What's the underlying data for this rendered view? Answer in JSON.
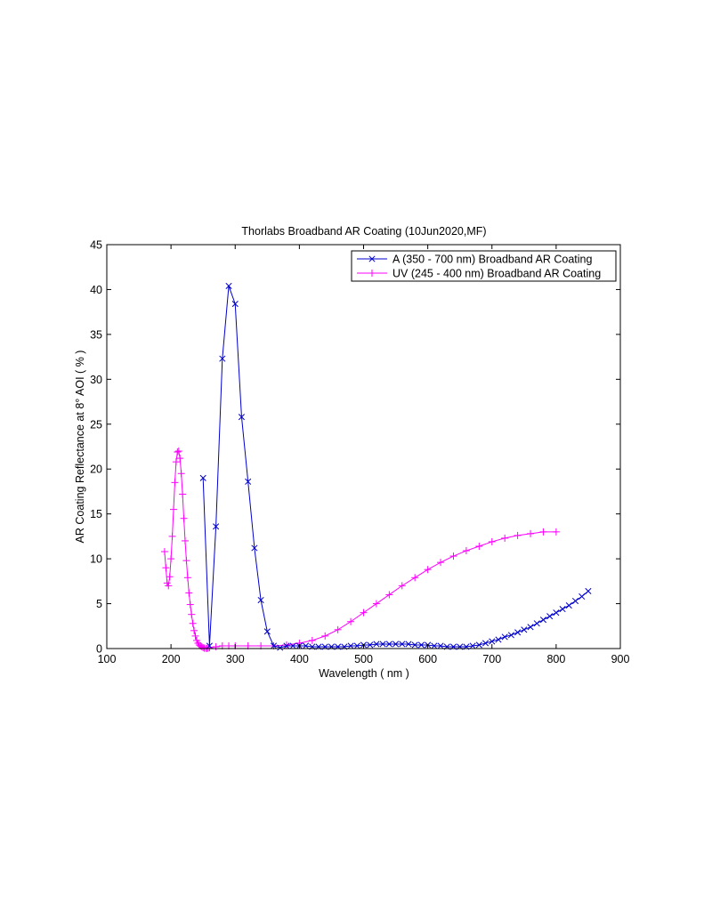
{
  "chart_data": {
    "type": "line",
    "title": "Thorlabs Broadband AR Coating  (10Jun2020,MF)",
    "xlabel": "Wavelength  ( nm )",
    "ylabel": "AR Coating Reflectance at 8° AOI  ( % )",
    "xlim": [
      100,
      900
    ],
    "ylim": [
      0,
      45
    ],
    "xticks": [
      100,
      200,
      300,
      400,
      500,
      600,
      700,
      800,
      900
    ],
    "yticks": [
      0,
      5,
      10,
      15,
      20,
      25,
      30,
      35,
      40,
      45
    ],
    "grid": false,
    "legend_position": "top-right",
    "series": [
      {
        "name": "A (350 - 700 nm) Broadband AR Coating",
        "color": "#0000cc",
        "marker": "x",
        "x": [
          250,
          260,
          270,
          280,
          290,
          300,
          310,
          320,
          330,
          340,
          350,
          360,
          370,
          380,
          390,
          400,
          410,
          420,
          430,
          440,
          450,
          460,
          470,
          480,
          490,
          500,
          510,
          520,
          530,
          540,
          550,
          560,
          570,
          580,
          590,
          600,
          610,
          620,
          630,
          640,
          650,
          660,
          670,
          680,
          690,
          700,
          710,
          720,
          730,
          740,
          750,
          760,
          770,
          780,
          790,
          800,
          810,
          820,
          830,
          840,
          850
        ],
        "y": [
          19.0,
          0.3,
          13.6,
          32.3,
          40.4,
          38.4,
          25.8,
          18.6,
          11.2,
          5.4,
          1.9,
          0.3,
          0.1,
          0.3,
          0.3,
          0.3,
          0.3,
          0.2,
          0.2,
          0.2,
          0.2,
          0.2,
          0.2,
          0.3,
          0.3,
          0.4,
          0.4,
          0.5,
          0.5,
          0.5,
          0.5,
          0.5,
          0.5,
          0.4,
          0.4,
          0.4,
          0.3,
          0.3,
          0.2,
          0.2,
          0.2,
          0.2,
          0.3,
          0.4,
          0.6,
          0.8,
          1.0,
          1.3,
          1.5,
          1.8,
          2.1,
          2.4,
          2.8,
          3.2,
          3.6,
          4.0,
          4.4,
          4.8,
          5.3,
          5.8,
          6.4
        ]
      },
      {
        "name": "UV (245 - 400 nm) Broadband AR Coating",
        "color": "#ff00ff",
        "marker": "+",
        "x": [
          190,
          192,
          194,
          196,
          198,
          200,
          202,
          204,
          206,
          208,
          210,
          212,
          214,
          216,
          218,
          220,
          222,
          224,
          226,
          228,
          230,
          232,
          234,
          236,
          238,
          240,
          242,
          244,
          246,
          248,
          250,
          252,
          254,
          256,
          258,
          260,
          270,
          280,
          290,
          300,
          320,
          340,
          360,
          380,
          400,
          420,
          440,
          460,
          480,
          500,
          520,
          540,
          560,
          580,
          600,
          620,
          640,
          660,
          680,
          700,
          720,
          740,
          760,
          780,
          800
        ],
        "y": [
          10.8,
          9.0,
          7.3,
          7.0,
          8.0,
          10.0,
          12.5,
          15.5,
          18.5,
          20.8,
          21.9,
          22.0,
          21.2,
          19.5,
          17.2,
          14.5,
          12.0,
          9.8,
          7.9,
          6.2,
          4.9,
          3.8,
          2.8,
          2.0,
          1.4,
          0.9,
          0.6,
          0.4,
          0.3,
          0.2,
          0.1,
          0.05,
          0.03,
          0.02,
          0.05,
          0.1,
          0.2,
          0.3,
          0.3,
          0.3,
          0.3,
          0.3,
          0.3,
          0.4,
          0.6,
          0.9,
          1.4,
          2.1,
          3.0,
          4.0,
          5.0,
          6.0,
          7.0,
          7.9,
          8.8,
          9.6,
          10.3,
          10.9,
          11.4,
          11.9,
          12.3,
          12.6,
          12.8,
          13.0,
          13.0
        ]
      }
    ]
  }
}
